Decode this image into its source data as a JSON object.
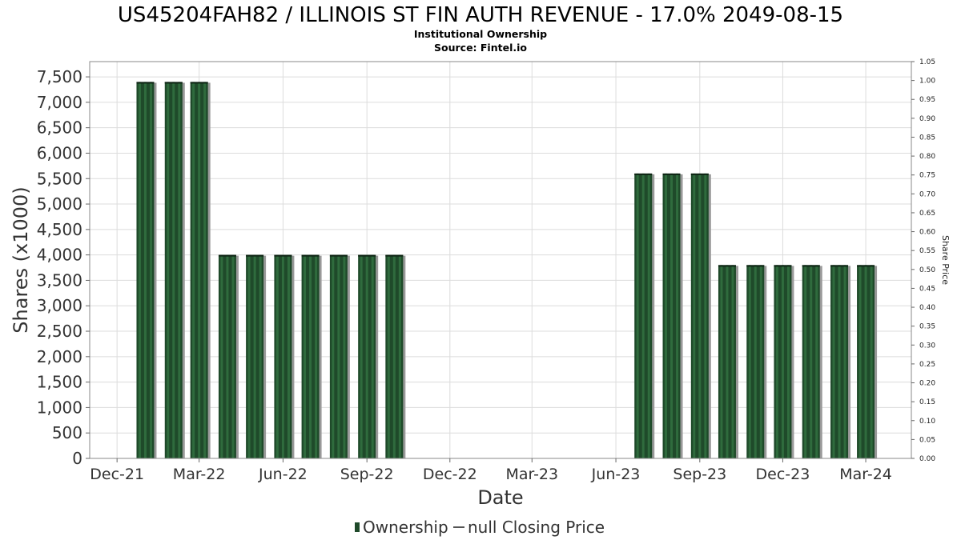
{
  "chart_data": {
    "type": "bar",
    "title": "US45204FAH82 / ILLINOIS ST FIN AUTH REVENUE - 17.0% 2049-08-15",
    "subtitle": "Institutional Ownership",
    "source": "Source: Fintel.io",
    "xlabel": "Date",
    "ylabel": "Shares (x1000)",
    "y2label": "Share Price",
    "ylim": [
      0,
      7800
    ],
    "y2lim": [
      0,
      1.05
    ],
    "xlim": [
      "2021-11-01",
      "2024-04-20"
    ],
    "grid": true,
    "legend_position": "bottom",
    "x_ticks": [
      {
        "date": "2021-12-01",
        "label": "Dec-21"
      },
      {
        "date": "2022-03-01",
        "label": "Mar-22"
      },
      {
        "date": "2022-06-01",
        "label": "Jun-22"
      },
      {
        "date": "2022-09-01",
        "label": "Sep-22"
      },
      {
        "date": "2022-12-01",
        "label": "Dec-22"
      },
      {
        "date": "2023-03-01",
        "label": "Mar-23"
      },
      {
        "date": "2023-06-01",
        "label": "Jun-23"
      },
      {
        "date": "2023-09-01",
        "label": "Sep-23"
      },
      {
        "date": "2023-12-01",
        "label": "Dec-23"
      },
      {
        "date": "2024-03-01",
        "label": "Mar-24"
      }
    ],
    "y_ticks": [
      0,
      500,
      1000,
      1500,
      2000,
      2500,
      3000,
      3500,
      4000,
      4500,
      5000,
      5500,
      6000,
      6500,
      7000,
      7500
    ],
    "y_tick_labels": [
      "0",
      "500",
      "1,000",
      "1,500",
      "2,000",
      "2,500",
      "3,000",
      "3,500",
      "4,000",
      "4,500",
      "5,000",
      "5,500",
      "6,000",
      "6,500",
      "7,000",
      "7,500"
    ],
    "y2_ticks": [
      0,
      0.05,
      0.1,
      0.15,
      0.2,
      0.25,
      0.3,
      0.35,
      0.4,
      0.45,
      0.5,
      0.55,
      0.6,
      0.65,
      0.7,
      0.75,
      0.8,
      0.85,
      0.9,
      0.95,
      1.0,
      1.05
    ],
    "y2_tick_labels": [
      "0.00",
      "0.05",
      "0.10",
      "0.15",
      "0.20",
      "0.25",
      "0.30",
      "0.35",
      "0.40",
      "0.45",
      "0.50",
      "0.55",
      "0.60",
      "0.65",
      "0.70",
      "0.75",
      "0.80",
      "0.85",
      "0.90",
      "0.95",
      "1.00",
      "1.05"
    ],
    "series": [
      {
        "name": "Ownership",
        "color": "#1f4a2a",
        "points": [
          {
            "date": "2022-01-01",
            "value": 7400
          },
          {
            "date": "2022-02-01",
            "value": 7400
          },
          {
            "date": "2022-03-01",
            "value": 7400
          },
          {
            "date": "2022-04-01",
            "value": 4000
          },
          {
            "date": "2022-05-01",
            "value": 4000
          },
          {
            "date": "2022-06-01",
            "value": 4000
          },
          {
            "date": "2022-07-01",
            "value": 4000
          },
          {
            "date": "2022-08-01",
            "value": 4000
          },
          {
            "date": "2022-09-01",
            "value": 4000
          },
          {
            "date": "2022-10-01",
            "value": 4000
          },
          {
            "date": "2023-07-01",
            "value": 5600
          },
          {
            "date": "2023-08-01",
            "value": 5600
          },
          {
            "date": "2023-09-01",
            "value": 5600
          },
          {
            "date": "2023-10-01",
            "value": 3800
          },
          {
            "date": "2023-11-01",
            "value": 3800
          },
          {
            "date": "2023-12-01",
            "value": 3800
          },
          {
            "date": "2024-01-01",
            "value": 3800
          },
          {
            "date": "2024-02-01",
            "value": 3800
          },
          {
            "date": "2024-03-01",
            "value": 3800
          }
        ]
      },
      {
        "name": "null Closing Price",
        "color": "#555555",
        "points": []
      }
    ]
  }
}
